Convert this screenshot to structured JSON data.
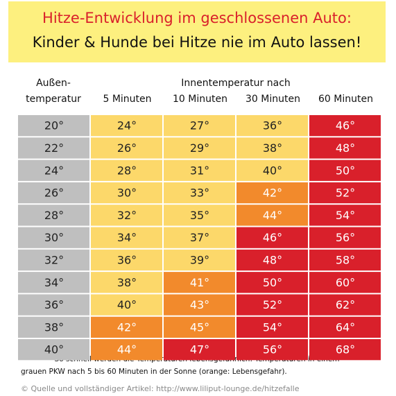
{
  "header": {
    "title_line1": "Hitze-Entwicklung im geschlossenen Auto:",
    "title_line2": "Kinder & Hunde bei Hitze nie im Auto lassen!"
  },
  "table": {
    "outside_label_line1": "Außen-",
    "outside_label_line2": "temperatur",
    "inside_label": "Innentemperatur nach",
    "columns": [
      "5 Minuten",
      "10 Minuten",
      "30 Minuten",
      "60 Minuten"
    ],
    "rows": [
      [
        "20°",
        "24°",
        "27°",
        "36°",
        "46°"
      ],
      [
        "22°",
        "26°",
        "29°",
        "38°",
        "48°"
      ],
      [
        "24°",
        "28°",
        "31°",
        "40°",
        "50°"
      ],
      [
        "26°",
        "30°",
        "33°",
        "42°",
        "52°"
      ],
      [
        "28°",
        "32°",
        "35°",
        "44°",
        "54°"
      ],
      [
        "30°",
        "34°",
        "37°",
        "46°",
        "56°"
      ],
      [
        "32°",
        "36°",
        "39°",
        "48°",
        "58°"
      ],
      [
        "34°",
        "38°",
        "41°",
        "50°",
        "60°"
      ],
      [
        "36°",
        "40°",
        "43°",
        "52°",
        "62°"
      ],
      [
        "38°",
        "42°",
        "45°",
        "54°",
        "64°"
      ],
      [
        "40°",
        "44°",
        "47°",
        "56°",
        "68°"
      ]
    ],
    "cell_colors": [
      [
        "#bfbfbf",
        "#fcd86a",
        "#fcd86a",
        "#fcd86a",
        "#d9202b"
      ],
      [
        "#bfbfbf",
        "#fcd86a",
        "#fcd86a",
        "#fcd86a",
        "#d9202b"
      ],
      [
        "#bfbfbf",
        "#fcd86a",
        "#fcd86a",
        "#fcd86a",
        "#d9202b"
      ],
      [
        "#bfbfbf",
        "#fcd86a",
        "#fcd86a",
        "#f28a2c",
        "#d9202b"
      ],
      [
        "#bfbfbf",
        "#fcd86a",
        "#fcd86a",
        "#f28a2c",
        "#d9202b"
      ],
      [
        "#bfbfbf",
        "#fcd86a",
        "#fcd86a",
        "#d9202b",
        "#d9202b"
      ],
      [
        "#bfbfbf",
        "#fcd86a",
        "#fcd86a",
        "#d9202b",
        "#d9202b"
      ],
      [
        "#bfbfbf",
        "#fcd86a",
        "#f28a2c",
        "#d9202b",
        "#d9202b"
      ],
      [
        "#bfbfbf",
        "#fcd86a",
        "#f28a2c",
        "#d9202b",
        "#d9202b"
      ],
      [
        "#bfbfbf",
        "#f28a2c",
        "#f28a2c",
        "#d9202b",
        "#d9202b"
      ],
      [
        "#bfbfbf",
        "#f28a2c",
        "#d9202b",
        "#d9202b",
        "#d9202b"
      ]
    ]
  },
  "footer": {
    "note_line1": "So schnell werden die Temperaturen lebensgefährlich: Temperaturen in einem",
    "note_line2": "grauen PKW nach 5 bis 60 Minuten in der Sonne (orange: Lebensgefahr).",
    "source": "© Quelle und vollständiger Artikel: http://www.liliput-lounge.de/hitzefalle"
  }
}
